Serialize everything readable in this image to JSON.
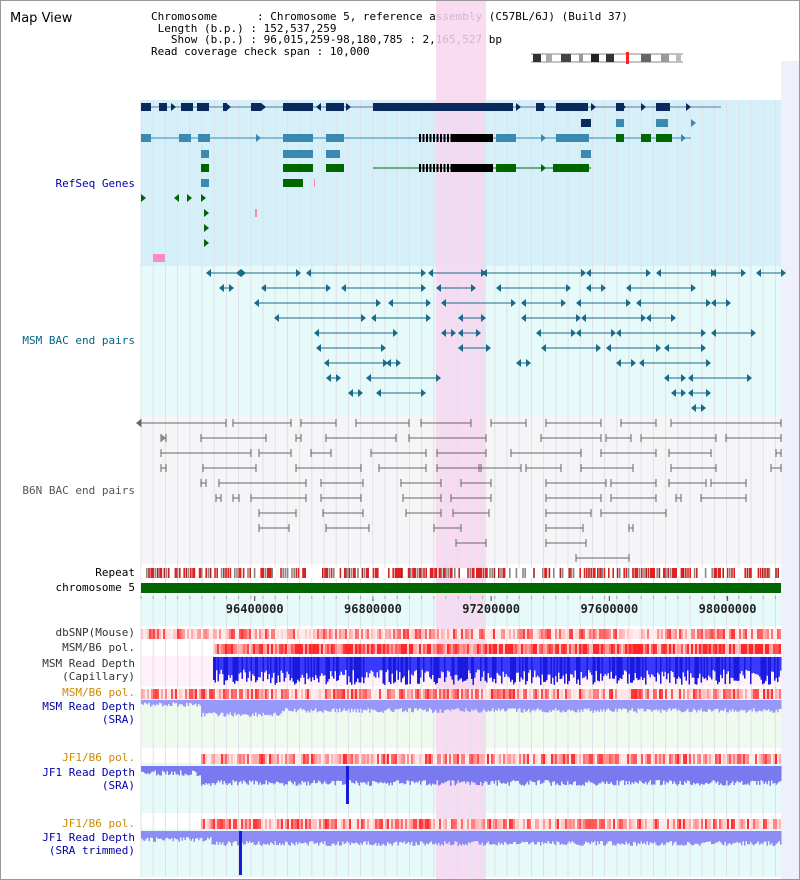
{
  "title": "Map View",
  "info": {
    "chromosome_label": "Chromosome",
    "chromosome_value": "Chromosome 5, reference assembly (C57BL/6J) (Build 37)",
    "length_label": "Length (b.p.)",
    "length_value": "152,537,259",
    "show_label": "Show (b.p.)",
    "show_value": "96,015,259-98,180,785 : 2,165,527 bp",
    "span_label": "Read coverage check span",
    "span_value": "10,000"
  },
  "tracks": {
    "refseq": "RefSeq Genes",
    "msm_bac": "MSM BAC end pairs",
    "b6n_bac": "B6N BAC end pairs",
    "repeat": "Repeat",
    "chromosome": "chromosome 5",
    "dbsnp": "dbSNP(Mouse)",
    "msm_pol": "MSM/B6 pol.",
    "msm_depth_cap_1": "MSM Read Depth",
    "msm_depth_cap_2": "(Capillary)",
    "msm_pol2": "MSM/B6 pol.",
    "msm_depth_sra_1": "MSM Read Depth",
    "msm_depth_sra_2": "(SRA)",
    "jf1_pol": "JF1/B6 pol.",
    "jf1_depth_1": "JF1 Read Depth",
    "jf1_depth_2": "(SRA)",
    "jf1_pol2": "JF1/B6 pol.",
    "jf1_trim_1": "JF1 Read Depth",
    "jf1_trim_2": "(SRA trimmed)"
  },
  "axis": {
    "ticks": [
      "96400000",
      "96800000",
      "97200000",
      "97600000",
      "98000000"
    ],
    "tick_values": [
      96400000,
      96800000,
      97200000,
      97600000,
      98000000
    ],
    "start": 96015259,
    "end": 98180785
  },
  "colors": {
    "refseq_bg": "#d6f0fa",
    "msm_bg": "#e6fafa",
    "b6n_bg": "#f5f5f8",
    "highlight": "#f8d6f0",
    "gene_dark": "#0a2a5e",
    "gene_mid": "#3a8ab0",
    "gene_green": "#006600",
    "msm_line": "#1a6a8a",
    "b6n_line": "#666666",
    "chromosome": "#006600",
    "depth_dark": "#1a1adc",
    "depth_light": "#7a7af0",
    "label_blue": "#0000aa",
    "label_teal": "#006688",
    "label_orange": "#d08800"
  }
}
